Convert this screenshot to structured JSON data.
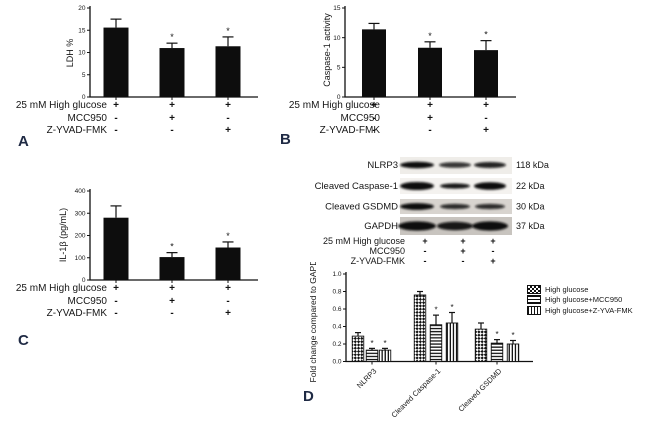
{
  "panels": {
    "a": {
      "letter": "A"
    },
    "b": {
      "letter": "B"
    },
    "c": {
      "letter": "C"
    },
    "d": {
      "letter": "D"
    }
  },
  "colors": {
    "ink": "#111111",
    "panel_label": "#1f2a44",
    "bar_fill": "#0d0d0d",
    "blot_strip_light": "#efede9",
    "blot_strip_mid": "#d8d4cf",
    "blot_strip_dark": "#c8c4bf"
  },
  "chart_data": [
    {
      "id": "A",
      "type": "bar",
      "ylabel": "LDH %",
      "ylim": [
        0,
        20
      ],
      "ytick_labels": [
        "0",
        "5",
        "10",
        "15",
        "20"
      ],
      "categories": [
        "High glucose",
        "High glucose + MCC950",
        "High glucose + Z-YVAD-FMK"
      ],
      "values": [
        15.6,
        11.0,
        11.4
      ],
      "errors": [
        1.9,
        1.1,
        2.1
      ],
      "significance": [
        "",
        "*",
        "*"
      ],
      "treatment_rows": [
        {
          "label": "25 mM High glucose",
          "values": [
            "+",
            "+",
            "+"
          ]
        },
        {
          "label": "MCC950",
          "values": [
            "-",
            "+",
            "-"
          ]
        },
        {
          "label": "Z-YVAD-FMK",
          "values": [
            "-",
            "-",
            "+"
          ]
        }
      ]
    },
    {
      "id": "B",
      "type": "bar",
      "ylabel": "Caspase-1 activity",
      "ylim": [
        0,
        15
      ],
      "ytick_labels": [
        "0",
        "5",
        "10",
        "15"
      ],
      "categories": [
        "High glucose",
        "High glucose + MCC950",
        "High glucose + Z-YVAD-FMK"
      ],
      "values": [
        11.4,
        8.3,
        7.9
      ],
      "errors": [
        1.0,
        1.0,
        1.6
      ],
      "significance": [
        "",
        "*",
        "*"
      ],
      "treatment_rows": [
        {
          "label": "25 mM High glucose",
          "values": [
            "+",
            "+",
            "+"
          ]
        },
        {
          "label": "MCC950",
          "values": [
            "-",
            "+",
            "-"
          ]
        },
        {
          "label": "Z-YVAD-FMK",
          "values": [
            "-",
            "-",
            "+"
          ]
        }
      ]
    },
    {
      "id": "C",
      "type": "bar",
      "ylabel": "IL-1β (pg/mL)",
      "ylim": [
        0,
        400
      ],
      "ytick_labels": [
        "0",
        "100",
        "200",
        "300",
        "400"
      ],
      "categories": [
        "High glucose",
        "High glucose + MCC950",
        "High glucose + Z-YVAD-FMK"
      ],
      "values": [
        280,
        103,
        146
      ],
      "errors": [
        53,
        20,
        25
      ],
      "significance": [
        "",
        "*",
        "*"
      ],
      "treatment_rows": [
        {
          "label": "25 mM High glucose",
          "values": [
            "+",
            "+",
            "+"
          ]
        },
        {
          "label": "MCC950",
          "values": [
            "-",
            "+",
            "-"
          ]
        },
        {
          "label": "Z-YVAD-FMK",
          "values": [
            "-",
            "-",
            "+"
          ]
        }
      ]
    },
    {
      "id": "D",
      "type": "grouped-bar",
      "ylabel": "Fold change compared to GAPDH",
      "ylim": [
        0,
        1.0
      ],
      "ytick_labels": [
        "0.0",
        "0.2",
        "0.4",
        "0.6",
        "0.8",
        "1.0"
      ],
      "categories": [
        "NLRP3",
        "Cleaved Caspase-1",
        "Cleaved GSDMD"
      ],
      "legend_position": "right",
      "series": [
        {
          "name": "High glucose",
          "pattern": "checker",
          "values": [
            0.29,
            0.76,
            0.37
          ],
          "errors": [
            0.04,
            0.04,
            0.07
          ],
          "significance": [
            "",
            "",
            ""
          ]
        },
        {
          "name": "High glucose+MCC950",
          "pattern": "hlines",
          "values": [
            0.13,
            0.42,
            0.21
          ],
          "errors": [
            0.02,
            0.11,
            0.04
          ],
          "significance": [
            "*",
            "*",
            "*"
          ]
        },
        {
          "name": "High glucose+Z-YVA-FMK",
          "pattern": "vlines",
          "values": [
            0.13,
            0.44,
            0.2
          ],
          "errors": [
            0.02,
            0.12,
            0.04
          ],
          "significance": [
            "*",
            "*",
            "*"
          ]
        }
      ]
    }
  ],
  "western_blot": {
    "lanes": 3,
    "rows": [
      {
        "label": "NLRP3",
        "kda": "118 kDa"
      },
      {
        "label": "Cleaved Caspase-1",
        "kda": "22 kDa"
      },
      {
        "label": "Cleaved GSDMD",
        "kda": "30 kDa"
      },
      {
        "label": "GAPDH",
        "kda": "37 kDa"
      }
    ],
    "treatment_rows": [
      {
        "label": "25 mM High glucose",
        "values": [
          "+",
          "+",
          "+"
        ]
      },
      {
        "label": "MCC950",
        "values": [
          "-",
          "+",
          "-"
        ]
      },
      {
        "label": "Z-YVAD-FMK",
        "values": [
          "-",
          "-",
          "+"
        ]
      }
    ]
  }
}
